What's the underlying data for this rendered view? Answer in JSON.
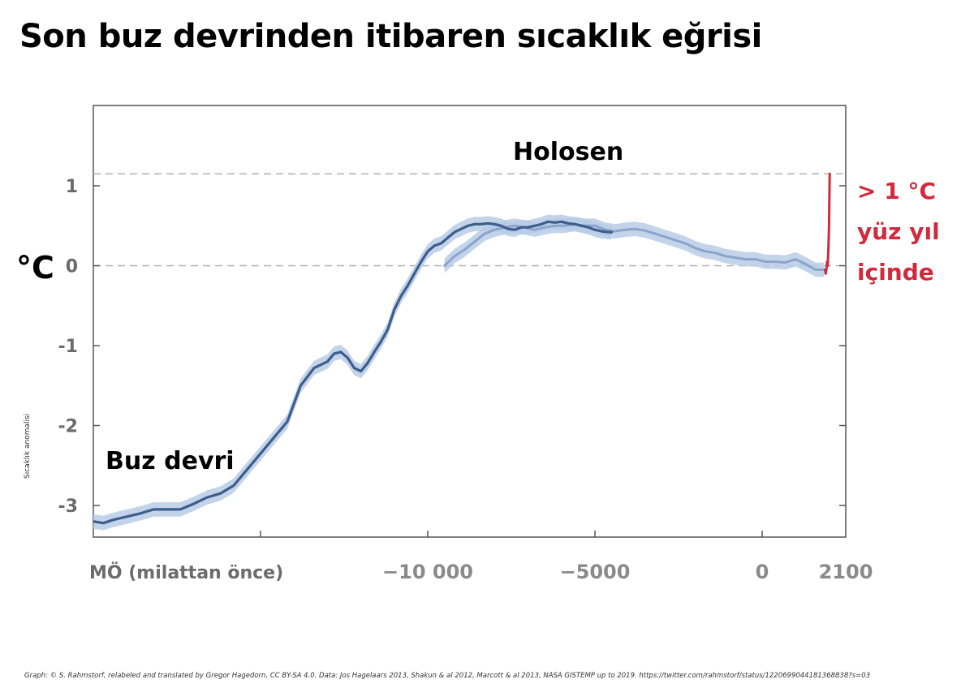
{
  "title": "Son buz devrinden itibaren sıcaklık eğrisi",
  "credit": "Graph: © S. Rahmstorf, relabeled and translated by Gregor Hagedorn, CC BY-SA 4.0. Data: Jos Hagelaars 2013, Shakun & al 2012, Marcott & al 2013, NASA GISTEMP up to 2019. https://twitter.com/rahmstorf/status/1220699044181368838?s=03",
  "chart_data": {
    "type": "line",
    "ylabel": "Sıcaklık anomalisi",
    "yunit": "°C",
    "xlabel": "MÖ (milattan önce)",
    "xlim": [
      -20000,
      2100
    ],
    "ylim": [
      -3.4,
      2.0
    ],
    "x_ticks": [
      {
        "value": -10000,
        "label": "−10 000"
      },
      {
        "value": -5000,
        "label": "−5000"
      },
      {
        "value": 0,
        "label": "0"
      },
      {
        "value": 2100,
        "label": "2100"
      }
    ],
    "y_ticks": [
      {
        "value": 1,
        "label": "1"
      },
      {
        "value": 0,
        "label": "0"
      },
      {
        "value": -1,
        "label": "-1"
      },
      {
        "value": -2,
        "label": "-2"
      },
      {
        "value": -3,
        "label": "-3"
      }
    ],
    "reference_lines": [
      0,
      1.15
    ],
    "annotations": {
      "holocene": "Holosen",
      "ice_age": "Buz devri",
      "warming_1": "> 1 °C",
      "warming_2": "yüz yıl",
      "warming_3": "içinde"
    },
    "colors": {
      "shakun": "#3d5d8c",
      "marcott": "#8aa4cc",
      "band": "#b9cbe6",
      "modern": "#d02a3c",
      "grid": "#b0b0b0"
    },
    "series": [
      {
        "x": [
          -20000,
          -19700,
          -19400,
          -19000,
          -18600,
          -18200,
          -17800,
          -17400,
          -17000,
          -16600,
          -16200,
          -15800,
          -15400,
          -15000,
          -14600,
          -14200,
          -13800,
          -13400,
          -13000,
          -12800,
          -12600,
          -12400,
          -12200,
          -12000,
          -11800,
          -11600,
          -11400,
          -11200,
          -11000,
          -10800,
          -10600,
          -10400,
          -10200,
          -10000,
          -9800,
          -9600,
          -9400,
          -9200,
          -9000,
          -8800,
          -8600,
          -8400,
          -8200,
          -8000,
          -7800,
          -7600,
          -7400,
          -7200,
          -7000,
          -6800,
          -6600,
          -6400,
          -6200,
          -6000,
          -5800,
          -5600,
          -5400,
          -5200,
          -5000,
          -4800,
          -4600,
          -4500
        ],
        "values": [
          -3.2,
          -3.22,
          -3.18,
          -3.14,
          -3.1,
          -3.05,
          -3.05,
          -3.05,
          -2.98,
          -2.9,
          -2.85,
          -2.75,
          -2.55,
          -2.35,
          -2.15,
          -1.95,
          -1.5,
          -1.28,
          -1.2,
          -1.1,
          -1.08,
          -1.15,
          -1.28,
          -1.32,
          -1.22,
          -1.08,
          -0.95,
          -0.8,
          -0.55,
          -0.38,
          -0.25,
          -0.1,
          0.05,
          0.18,
          0.25,
          0.28,
          0.35,
          0.42,
          0.46,
          0.5,
          0.52,
          0.52,
          0.53,
          0.52,
          0.5,
          0.46,
          0.45,
          0.48,
          0.48,
          0.5,
          0.52,
          0.55,
          0.54,
          0.55,
          0.53,
          0.52,
          0.5,
          0.48,
          0.45,
          0.43,
          0.42,
          0.42
        ]
      },
      {
        "x": [
          -9500,
          -9200,
          -8900,
          -8600,
          -8300,
          -8000,
          -7700,
          -7400,
          -7100,
          -6800,
          -6500,
          -6200,
          -5900,
          -5600,
          -5300,
          -5000,
          -4700,
          -4400,
          -4100,
          -3800,
          -3500,
          -3200,
          -2900,
          -2600,
          -2300,
          -2000,
          -1700,
          -1400,
          -1100,
          -800,
          -500,
          -200,
          100,
          400,
          700,
          1000,
          1300,
          1600,
          1850
        ],
        "values": [
          0.0,
          0.12,
          0.2,
          0.3,
          0.4,
          0.45,
          0.48,
          0.5,
          0.48,
          0.45,
          0.48,
          0.5,
          0.5,
          0.52,
          0.5,
          0.5,
          0.45,
          0.43,
          0.45,
          0.46,
          0.44,
          0.4,
          0.36,
          0.32,
          0.28,
          0.22,
          0.18,
          0.16,
          0.12,
          0.1,
          0.08,
          0.08,
          0.05,
          0.05,
          0.04,
          0.08,
          0.02,
          -0.05,
          -0.05
        ]
      },
      {
        "x": [
          1880,
          1900,
          1920,
          1940,
          1960,
          1980,
          2000,
          2019
        ],
        "values": [
          -0.05,
          -0.1,
          -0.05,
          0.05,
          0.0,
          0.2,
          0.5,
          1.15
        ]
      }
    ]
  }
}
